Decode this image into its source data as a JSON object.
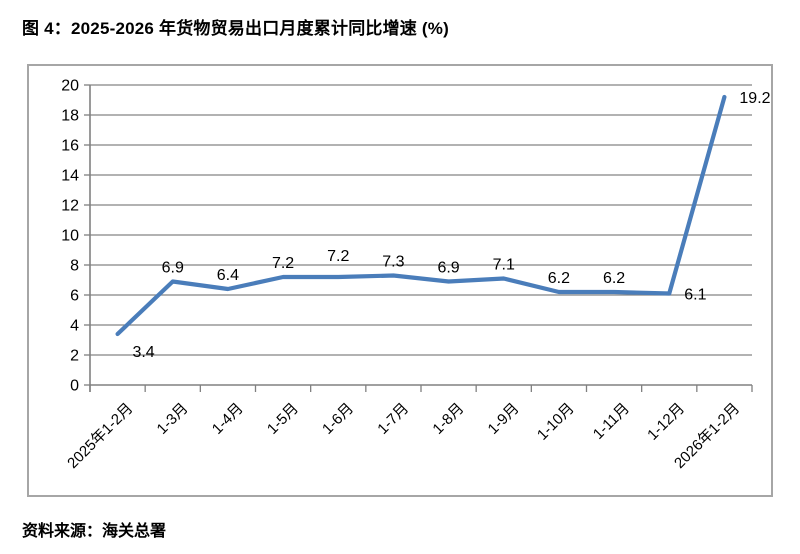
{
  "title": "图 4：2025-2026 年货物贸易出口月度累计同比增速 (%)",
  "source": "资料来源：海关总署",
  "chart_data": {
    "type": "line",
    "title": "图 4：2025-2026 年货物贸易出口月度累计同比增速 (%)",
    "categories": [
      "2025年1-2月",
      "1-3月",
      "1-4月",
      "1-5月",
      "1-6月",
      "1-7月",
      "1-8月",
      "1-9月",
      "1-10月",
      "1-11月",
      "1-12月",
      "2026年1-2月"
    ],
    "values": [
      3.4,
      6.9,
      6.4,
      7.2,
      7.2,
      7.3,
      6.9,
      7.1,
      6.2,
      6.2,
      6.1,
      19.2
    ],
    "xlabel": "",
    "ylabel": "",
    "ylim": [
      0,
      20
    ],
    "ytick_step": 2,
    "grid": true,
    "legend": "none",
    "label_positions": [
      "below",
      "above",
      "above",
      "above",
      "above_high",
      "above",
      "above",
      "above",
      "above",
      "above",
      "right",
      "right"
    ],
    "colors": {
      "line": "#4a7dba",
      "grid": "#848484",
      "axis": "#808080",
      "frame": "#a6a6a6",
      "text": "#000000"
    }
  }
}
